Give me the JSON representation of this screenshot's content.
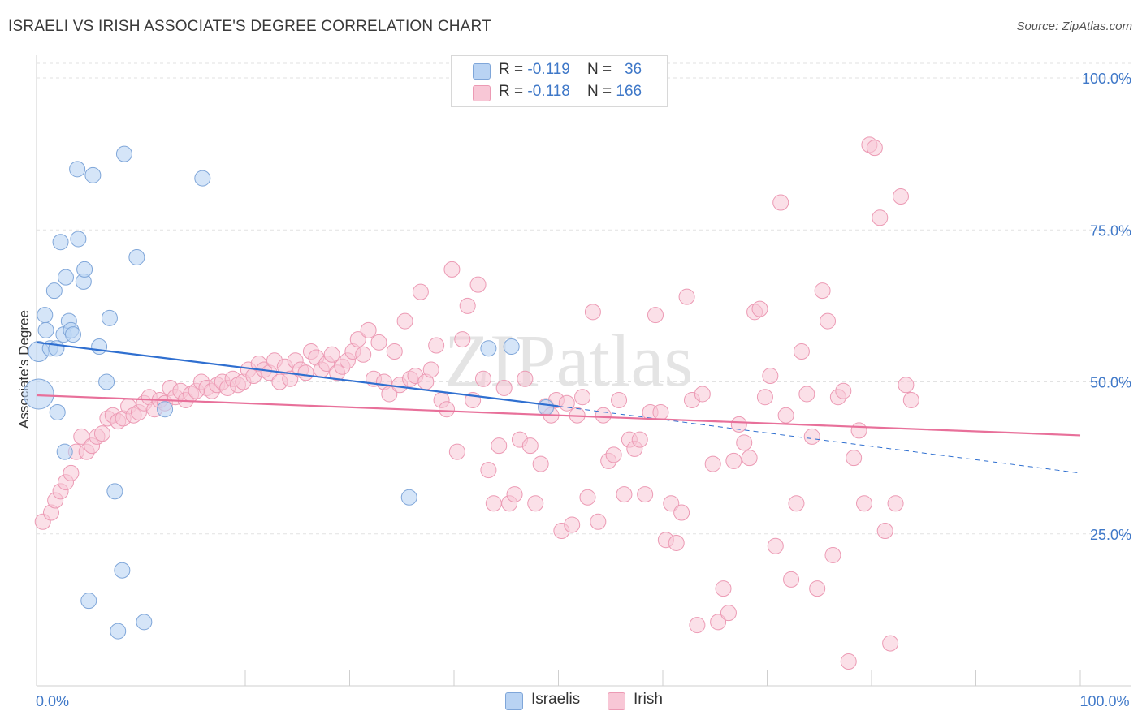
{
  "title": "ISRAELI VS IRISH ASSOCIATE'S DEGREE CORRELATION CHART",
  "source": "Source: ZipAtlas.com",
  "watermark": "ZIPatlas",
  "colors": {
    "israelis_fill": "#b9d3f3",
    "israelis_stroke": "#7fa6d9",
    "israelis_line": "#2f6fd0",
    "irish_fill": "#f8c7d6",
    "irish_stroke": "#ec9ab4",
    "irish_line": "#e8709a",
    "axis_label": "#3f78c8",
    "grid": "#e2e2e2"
  },
  "legend_top": {
    "israelis": {
      "r_label": "R =",
      "r_value": "-0.119",
      "n_label": "N =",
      "n_value": "36"
    },
    "irish": {
      "r_label": "R =",
      "r_value": "-0.118",
      "n_label": "N =",
      "n_value": "166"
    }
  },
  "legend_bottom": {
    "israelis": "Israelis",
    "irish": "Irish"
  },
  "chart_data": {
    "type": "scatter",
    "title": "ISRAELI VS IRISH ASSOCIATE'S DEGREE CORRELATION CHART",
    "xlabel": "",
    "ylabel": "Associate's Degree",
    "xlim": [
      0,
      100
    ],
    "ylim": [
      0,
      100
    ],
    "x_tick_labels": [
      {
        "value": 0,
        "label": "0.0%"
      },
      {
        "value": 100,
        "label": "100.0%"
      }
    ],
    "y_tick_labels": [
      {
        "value": 25,
        "label": "25.0%"
      },
      {
        "value": 50,
        "label": "50.0%"
      },
      {
        "value": 75,
        "label": "75.0%"
      },
      {
        "value": 100,
        "label": "100.0%"
      }
    ],
    "series": [
      {
        "name": "Israelis",
        "R": -0.119,
        "N": 36,
        "trend": {
          "x": [
            0,
            50
          ],
          "y": [
            56.5,
            46.0
          ],
          "dashed_extension_to": [
            100,
            35.0
          ]
        },
        "points": [
          [
            0.2,
            55.0,
            22
          ],
          [
            0.2,
            48.0,
            34
          ],
          [
            0.8,
            61.0,
            16
          ],
          [
            0.9,
            58.5,
            16
          ],
          [
            1.3,
            55.5,
            16
          ],
          [
            1.7,
            65.0,
            16
          ],
          [
            1.9,
            55.5,
            16
          ],
          [
            2.0,
            45.0,
            16
          ],
          [
            2.3,
            73.0,
            16
          ],
          [
            2.6,
            57.8,
            16
          ],
          [
            2.7,
            38.5,
            16
          ],
          [
            2.8,
            67.2,
            16
          ],
          [
            3.1,
            60.0,
            16
          ],
          [
            3.3,
            58.5,
            16
          ],
          [
            3.5,
            57.8,
            16
          ],
          [
            3.9,
            85.0,
            16
          ],
          [
            4.0,
            73.5,
            16
          ],
          [
            4.5,
            66.5,
            16
          ],
          [
            4.6,
            68.5,
            16
          ],
          [
            5.0,
            14.0,
            16
          ],
          [
            5.4,
            84.0,
            16
          ],
          [
            6.0,
            55.8,
            16
          ],
          [
            6.7,
            50.0,
            16
          ],
          [
            7.0,
            60.5,
            16
          ],
          [
            7.5,
            32.0,
            16
          ],
          [
            7.8,
            9.0,
            16
          ],
          [
            8.2,
            19.0,
            16
          ],
          [
            8.4,
            87.5,
            16
          ],
          [
            9.6,
            70.5,
            16
          ],
          [
            10.3,
            10.5,
            16
          ],
          [
            12.3,
            45.5,
            16
          ],
          [
            15.9,
            83.5,
            16
          ],
          [
            35.7,
            31.0,
            16
          ],
          [
            43.3,
            55.5,
            16
          ],
          [
            45.5,
            55.8,
            16
          ],
          [
            48.8,
            45.8,
            16
          ]
        ]
      },
      {
        "name": "Irish",
        "R": -0.118,
        "N": 166,
        "trend": {
          "x": [
            0,
            100
          ],
          "y": [
            47.8,
            41.2
          ]
        },
        "points": [
          [
            0.6,
            27.0,
            16
          ],
          [
            1.4,
            28.5,
            16
          ],
          [
            1.8,
            30.5,
            16
          ],
          [
            2.3,
            32.0,
            16
          ],
          [
            2.8,
            33.5,
            16
          ],
          [
            3.3,
            35.0,
            16
          ],
          [
            3.8,
            38.5,
            16
          ],
          [
            4.3,
            41.0,
            16
          ],
          [
            4.8,
            38.5,
            16
          ],
          [
            5.3,
            39.5,
            16
          ],
          [
            5.8,
            41.0,
            16
          ],
          [
            6.3,
            41.5,
            16
          ],
          [
            6.8,
            44.0,
            16
          ],
          [
            7.3,
            44.5,
            16
          ],
          [
            7.8,
            43.5,
            16
          ],
          [
            8.3,
            44.0,
            16
          ],
          [
            8.8,
            46.0,
            16
          ],
          [
            9.3,
            44.5,
            16
          ],
          [
            9.8,
            45.0,
            16
          ],
          [
            10.3,
            46.5,
            16
          ],
          [
            10.8,
            47.5,
            16
          ],
          [
            11.3,
            45.5,
            16
          ],
          [
            11.8,
            47.0,
            16
          ],
          [
            12.3,
            46.5,
            16
          ],
          [
            12.8,
            49.0,
            16
          ],
          [
            13.3,
            47.5,
            16
          ],
          [
            13.8,
            48.5,
            16
          ],
          [
            14.3,
            47.0,
            16
          ],
          [
            14.8,
            48.0,
            16
          ],
          [
            15.3,
            48.5,
            16
          ],
          [
            15.8,
            50.0,
            16
          ],
          [
            16.3,
            49.0,
            16
          ],
          [
            16.8,
            48.5,
            16
          ],
          [
            17.3,
            49.5,
            16
          ],
          [
            17.8,
            50.0,
            16
          ],
          [
            18.3,
            49.0,
            16
          ],
          [
            18.8,
            50.5,
            16
          ],
          [
            19.3,
            49.5,
            16
          ],
          [
            19.8,
            50.0,
            16
          ],
          [
            20.3,
            52.0,
            16
          ],
          [
            20.8,
            51.0,
            16
          ],
          [
            21.3,
            53.0,
            16
          ],
          [
            21.8,
            52.0,
            16
          ],
          [
            22.3,
            51.5,
            16
          ],
          [
            22.8,
            53.5,
            16
          ],
          [
            23.3,
            50.0,
            16
          ],
          [
            23.8,
            52.5,
            16
          ],
          [
            24.3,
            50.5,
            16
          ],
          [
            24.8,
            53.5,
            16
          ],
          [
            25.3,
            52.0,
            16
          ],
          [
            25.8,
            51.5,
            16
          ],
          [
            26.3,
            55.0,
            16
          ],
          [
            26.8,
            54.0,
            16
          ],
          [
            27.3,
            52.0,
            16
          ],
          [
            27.8,
            53.0,
            16
          ],
          [
            28.3,
            54.5,
            16
          ],
          [
            28.8,
            51.5,
            16
          ],
          [
            29.3,
            52.5,
            16
          ],
          [
            29.8,
            53.5,
            16
          ],
          [
            30.3,
            55.0,
            16
          ],
          [
            30.8,
            57.0,
            16
          ],
          [
            31.3,
            54.5,
            16
          ],
          [
            31.8,
            58.5,
            16
          ],
          [
            32.3,
            50.5,
            16
          ],
          [
            32.8,
            56.5,
            16
          ],
          [
            33.3,
            50.0,
            16
          ],
          [
            33.8,
            48.0,
            16
          ],
          [
            34.3,
            55.0,
            16
          ],
          [
            34.8,
            49.5,
            16
          ],
          [
            35.3,
            60.0,
            16
          ],
          [
            35.8,
            50.5,
            16
          ],
          [
            36.3,
            51.0,
            16
          ],
          [
            36.8,
            64.8,
            16
          ],
          [
            37.3,
            50.0,
            16
          ],
          [
            37.8,
            52.0,
            16
          ],
          [
            38.3,
            56.0,
            16
          ],
          [
            38.8,
            47.0,
            16
          ],
          [
            39.3,
            45.5,
            16
          ],
          [
            39.8,
            68.5,
            16
          ],
          [
            40.3,
            38.5,
            16
          ],
          [
            40.8,
            57.0,
            16
          ],
          [
            41.3,
            62.5,
            16
          ],
          [
            41.8,
            47.0,
            16
          ],
          [
            42.3,
            66.0,
            16
          ],
          [
            42.8,
            50.5,
            16
          ],
          [
            43.3,
            35.5,
            16
          ],
          [
            43.8,
            30.0,
            16
          ],
          [
            44.3,
            39.5,
            16
          ],
          [
            44.8,
            49.0,
            16
          ],
          [
            45.3,
            30.0,
            16
          ],
          [
            45.8,
            31.5,
            16
          ],
          [
            46.3,
            40.5,
            16
          ],
          [
            46.8,
            50.5,
            16
          ],
          [
            47.3,
            39.5,
            16
          ],
          [
            47.8,
            30.0,
            16
          ],
          [
            48.3,
            36.5,
            16
          ],
          [
            48.8,
            46.0,
            16
          ],
          [
            49.3,
            44.5,
            16
          ],
          [
            49.8,
            47.0,
            16
          ],
          [
            50.3,
            25.5,
            16
          ],
          [
            50.8,
            46.5,
            16
          ],
          [
            51.3,
            26.5,
            16
          ],
          [
            51.8,
            44.5,
            16
          ],
          [
            52.3,
            47.5,
            16
          ],
          [
            52.8,
            31.0,
            16
          ],
          [
            53.3,
            61.5,
            16
          ],
          [
            53.8,
            27.0,
            16
          ],
          [
            54.3,
            44.5,
            16
          ],
          [
            54.8,
            37.0,
            16
          ],
          [
            55.3,
            38.0,
            16
          ],
          [
            55.8,
            47.0,
            16
          ],
          [
            56.3,
            31.5,
            16
          ],
          [
            56.8,
            40.5,
            16
          ],
          [
            57.3,
            39.0,
            16
          ],
          [
            57.8,
            40.5,
            16
          ],
          [
            58.3,
            31.5,
            16
          ],
          [
            58.8,
            45.0,
            16
          ],
          [
            59.3,
            61.0,
            16
          ],
          [
            59.8,
            45.0,
            16
          ],
          [
            60.3,
            24.0,
            16
          ],
          [
            60.8,
            30.0,
            16
          ],
          [
            61.3,
            23.5,
            16
          ],
          [
            61.8,
            28.5,
            16
          ],
          [
            62.3,
            64.0,
            16
          ],
          [
            62.8,
            47.0,
            16
          ],
          [
            63.3,
            10.0,
            16
          ],
          [
            63.8,
            48.0,
            16
          ],
          [
            64.8,
            36.5,
            16
          ],
          [
            65.3,
            10.5,
            16
          ],
          [
            65.8,
            16.0,
            16
          ],
          [
            66.3,
            12.0,
            16
          ],
          [
            66.8,
            37.0,
            16
          ],
          [
            67.3,
            43.0,
            16
          ],
          [
            67.8,
            40.0,
            16
          ],
          [
            68.3,
            37.5,
            16
          ],
          [
            68.8,
            61.5,
            16
          ],
          [
            69.3,
            62.0,
            16
          ],
          [
            69.8,
            47.5,
            16
          ],
          [
            70.3,
            51.0,
            16
          ],
          [
            70.8,
            23.0,
            16
          ],
          [
            71.3,
            79.5,
            16
          ],
          [
            71.8,
            44.5,
            16
          ],
          [
            72.3,
            17.5,
            16
          ],
          [
            72.8,
            30.0,
            16
          ],
          [
            73.3,
            55.0,
            16
          ],
          [
            73.8,
            48.0,
            16
          ],
          [
            74.3,
            41.0,
            16
          ],
          [
            74.8,
            16.0,
            16
          ],
          [
            75.3,
            65.0,
            16
          ],
          [
            75.8,
            60.0,
            16
          ],
          [
            76.3,
            21.5,
            16
          ],
          [
            76.8,
            47.5,
            16
          ],
          [
            77.3,
            48.5,
            16
          ],
          [
            77.8,
            4.0,
            16
          ],
          [
            78.3,
            37.5,
            16
          ],
          [
            78.8,
            42.0,
            16
          ],
          [
            79.3,
            30.0,
            16
          ],
          [
            79.8,
            89.0,
            16
          ],
          [
            80.3,
            88.5,
            16
          ],
          [
            80.8,
            77.0,
            16
          ],
          [
            81.3,
            25.5,
            16
          ],
          [
            81.8,
            7.0,
            16
          ],
          [
            82.3,
            30.0,
            16
          ],
          [
            82.8,
            80.5,
            16
          ],
          [
            83.3,
            49.5,
            16
          ],
          [
            83.8,
            47.0,
            16
          ]
        ]
      }
    ]
  }
}
